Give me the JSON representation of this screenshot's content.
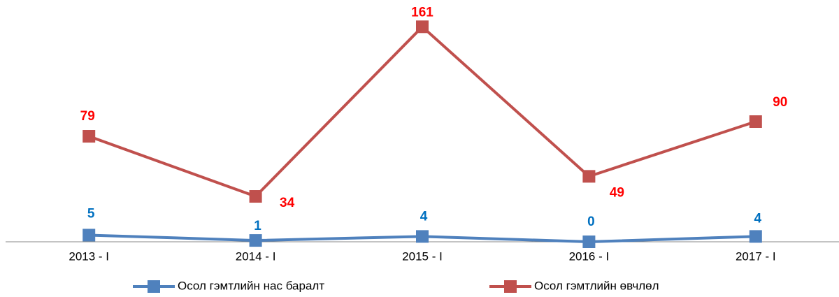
{
  "chart_data": {
    "type": "line",
    "categories": [
      "2013 -  I",
      "2014 -  I",
      "2015 -  I",
      "2016 -  I",
      "2017 -  I"
    ],
    "series": [
      {
        "name": "Осол гэмтлийн нас баралт",
        "color": "#4f81bd",
        "label_color": "#0070c0",
        "values": [
          5,
          1,
          4,
          0,
          4
        ]
      },
      {
        "name": "Осол гэмтлийн өвчлөл",
        "color": "#c0504d",
        "label_color": "#ff0000",
        "values": [
          79,
          34,
          161,
          49,
          90
        ]
      }
    ],
    "ylim": [
      0,
      180
    ]
  }
}
